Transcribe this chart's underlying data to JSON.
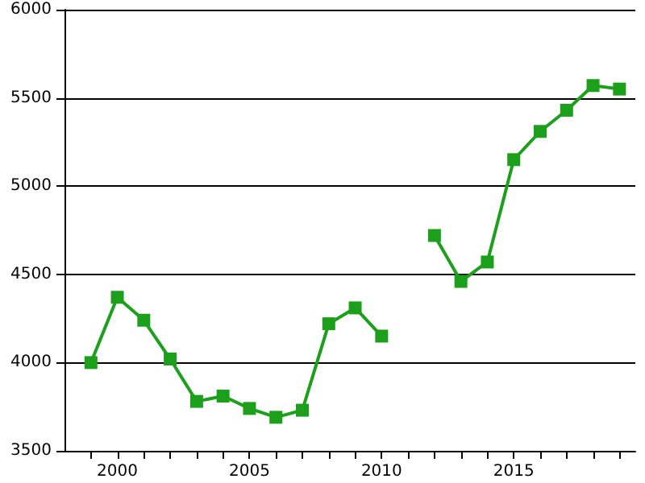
{
  "chart_data": {
    "type": "line",
    "x": [
      1999,
      2000,
      2001,
      2002,
      2003,
      2004,
      2005,
      2006,
      2007,
      2008,
      2009,
      2010,
      2011,
      2012,
      2013,
      2014,
      2015,
      2016,
      2017,
      2018,
      2019
    ],
    "series": [
      {
        "color": "#1ca01c",
        "values": [
          4000,
          4370,
          4240,
          4020,
          3780,
          3810,
          3740,
          3690,
          3730,
          4220,
          4310,
          4150,
          null,
          4720,
          4460,
          4570,
          5150,
          5310,
          5430,
          5570,
          5550
        ]
      }
    ],
    "xlim": [
      1998,
      2019.6
    ],
    "xticks": [
      {
        "value": 1999,
        "label": null
      },
      2000,
      {
        "value": 2001,
        "label": null
      },
      {
        "value": 2002,
        "label": null
      },
      {
        "value": 2003,
        "label": null
      },
      {
        "value": 2004,
        "label": null
      },
      2005,
      {
        "value": 2006,
        "label": null
      },
      {
        "value": 2007,
        "label": null
      },
      {
        "value": 2008,
        "label": null
      },
      {
        "value": 2009,
        "label": null
      },
      2010,
      {
        "value": 2011,
        "label": null
      },
      {
        "value": 2012,
        "label": null
      },
      {
        "value": 2013,
        "label": null
      },
      {
        "value": 2014,
        "label": null
      },
      2015,
      {
        "value": 2016,
        "label": null
      },
      {
        "value": 2017,
        "label": null
      },
      {
        "value": 2018,
        "label": null
      },
      {
        "value": 2019,
        "label": null
      }
    ],
    "ylim": [
      3500,
      6000
    ],
    "yticks": [
      3500,
      4000,
      4500,
      5000,
      5500,
      6000
    ],
    "grid": "y",
    "marker": "square",
    "line_style": "solid"
  }
}
